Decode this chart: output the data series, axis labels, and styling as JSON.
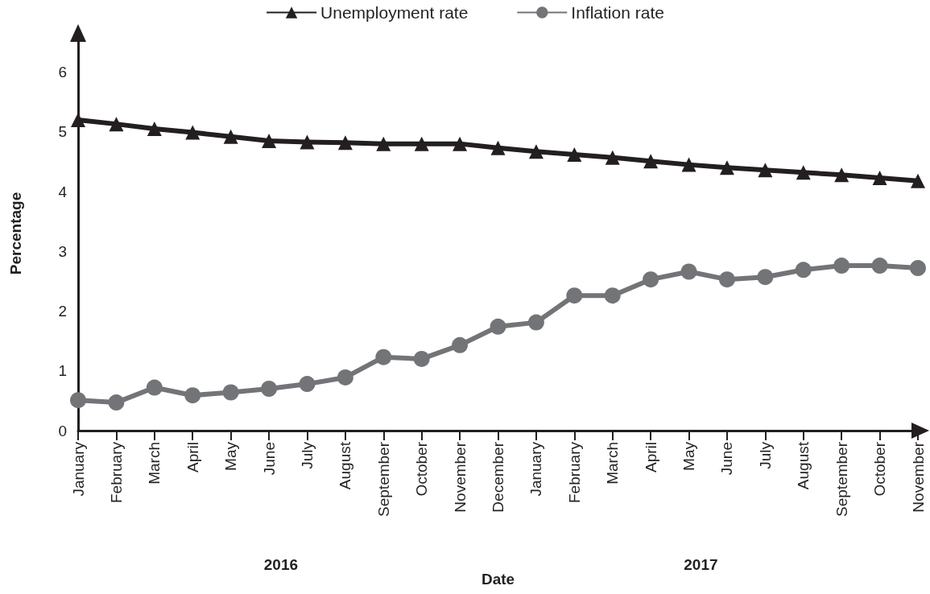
{
  "chart_data": {
    "type": "line",
    "xlabel": "Date",
    "ylabel": "Percentage",
    "categories": [
      "January",
      "February",
      "March",
      "April",
      "May",
      "June",
      "July",
      "August",
      "September",
      "October",
      "November",
      "December",
      "January",
      "February",
      "March",
      "April",
      "May",
      "June",
      "July",
      "August",
      "September",
      "October",
      "November"
    ],
    "series": [
      {
        "name": "Unemployment rate",
        "color": "#231f20",
        "marker": "triangle",
        "values": [
          5.2,
          5.13,
          5.05,
          4.99,
          4.92,
          4.85,
          4.83,
          4.82,
          4.8,
          4.8,
          4.8,
          4.73,
          4.67,
          4.62,
          4.57,
          4.51,
          4.45,
          4.4,
          4.36,
          4.32,
          4.28,
          4.23,
          4.18
        ]
      },
      {
        "name": "Inflation rate",
        "color": "#737477",
        "marker": "circle",
        "values": [
          0.51,
          0.47,
          0.72,
          0.59,
          0.64,
          0.7,
          0.78,
          0.89,
          1.23,
          1.2,
          1.43,
          1.74,
          1.81,
          2.26,
          2.26,
          2.53,
          2.66,
          2.53,
          2.57,
          2.69,
          2.76,
          2.76,
          2.72
        ]
      }
    ],
    "ylim": [
      0,
      6.6
    ],
    "yticks": [
      0,
      1,
      2,
      3,
      4,
      5,
      6
    ],
    "grid": false,
    "legend": "top",
    "line_style": "solid",
    "annotations": [
      "2016",
      "2017"
    ]
  }
}
